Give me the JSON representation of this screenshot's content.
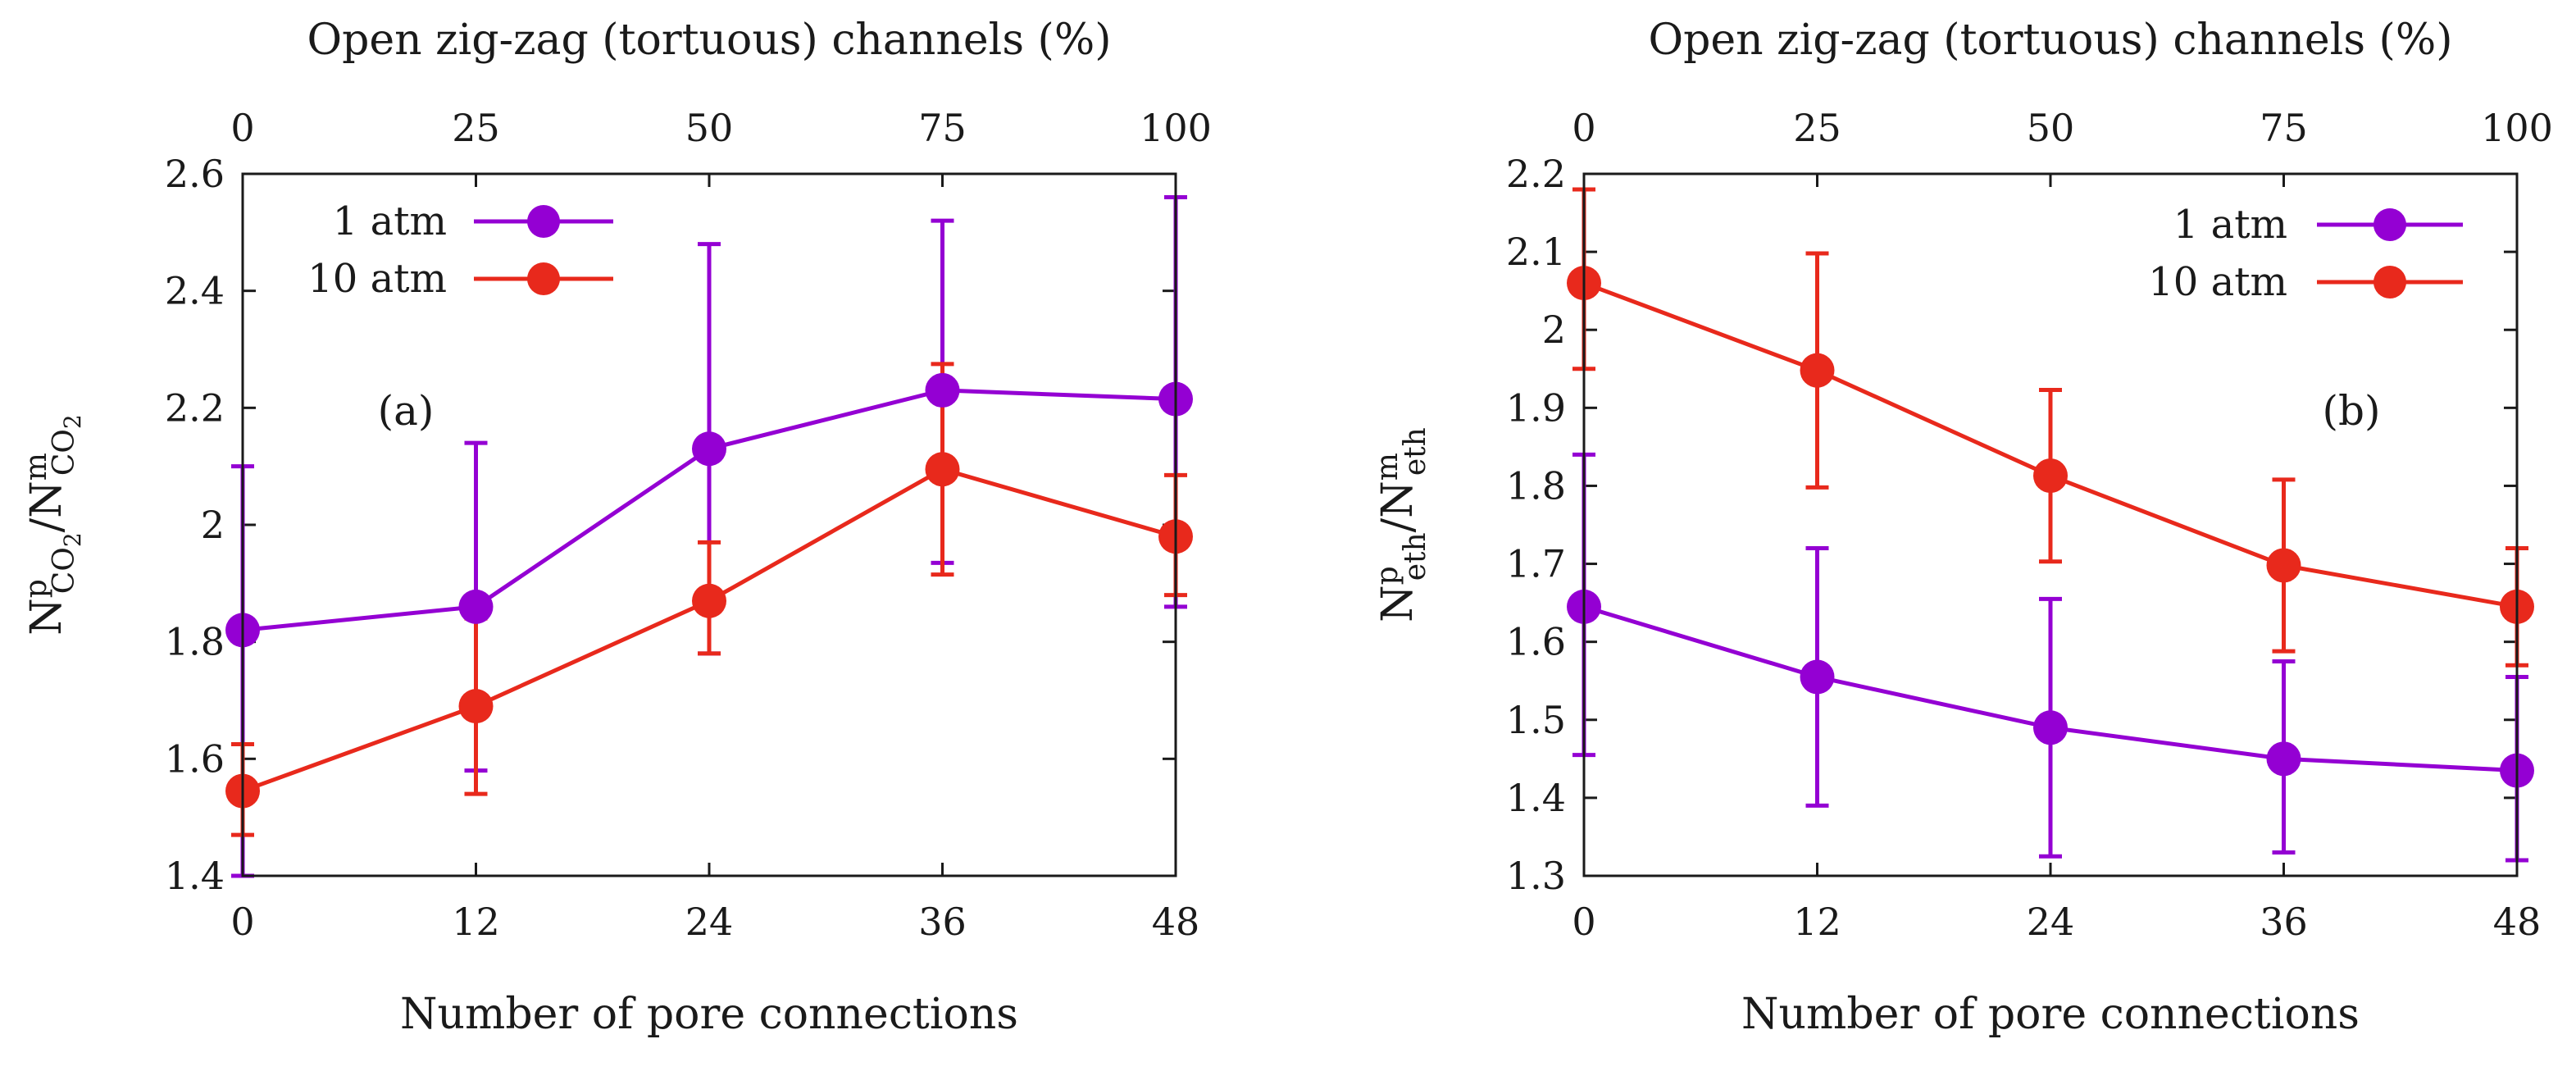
{
  "chart_data": [
    {
      "type": "line",
      "panel_label": "(a)",
      "xlabel": "Number of pore connections",
      "x2label": "Open zig-zag (tortuous) channels (%)",
      "ylabel": {
        "base": "N",
        "sup": "p",
        "sub": "CO",
        "sub2": "2",
        "sep": "/",
        "base2": "N",
        "sup2": "m",
        "sub3": "CO",
        "sub4": "2"
      },
      "x_ticks": [
        "0",
        "12",
        "24",
        "36",
        "48"
      ],
      "x2_ticks": [
        "0",
        "25",
        "50",
        "75",
        "100"
      ],
      "y_ticks": [
        "1.4",
        "1.6",
        "1.8",
        "2",
        "2.2",
        "2.4",
        "2.6"
      ],
      "xlim": [
        0,
        48
      ],
      "ylim": [
        1.4,
        2.6
      ],
      "legend_position": "top-left",
      "series": [
        {
          "name": "1 atm",
          "color": "#9400d3",
          "x": [
            0,
            12,
            24,
            36,
            48
          ],
          "values": [
            1.82,
            1.86,
            2.13,
            2.23,
            2.215
          ],
          "err_low": [
            0.42,
            0.28,
            0.35,
            0.295,
            0.355
          ],
          "err_high": [
            0.28,
            0.28,
            0.35,
            0.29,
            0.345
          ]
        },
        {
          "name": "10 atm",
          "color": "#e8291c",
          "x": [
            0,
            12,
            24,
            36,
            48
          ],
          "values": [
            1.545,
            1.69,
            1.87,
            2.095,
            1.98
          ],
          "err_low": [
            0.075,
            0.15,
            0.09,
            0.18,
            0.1
          ],
          "err_high": [
            0.08,
            0.15,
            0.1,
            0.18,
            0.105
          ]
        }
      ]
    },
    {
      "type": "line",
      "panel_label": "(b)",
      "xlabel": "Number of pore connections",
      "x2label": "Open zig-zag (tortuous) channels (%)",
      "ylabel": {
        "base": "N",
        "sup": "p",
        "sub": "eth",
        "sep": "/",
        "base2": "N",
        "sup2": "m",
        "sub3": "eth"
      },
      "x_ticks": [
        "0",
        "12",
        "24",
        "36",
        "48"
      ],
      "x2_ticks": [
        "0",
        "25",
        "50",
        "75",
        "100"
      ],
      "y_ticks": [
        "1.3",
        "1.4",
        "1.5",
        "1.6",
        "1.7",
        "1.8",
        "1.9",
        "2",
        "2.1",
        "2.2"
      ],
      "xlim": [
        0,
        48
      ],
      "ylim": [
        1.3,
        2.2
      ],
      "legend_position": "top-right",
      "series": [
        {
          "name": "1 atm",
          "color": "#9400d3",
          "x": [
            0,
            12,
            24,
            36,
            48
          ],
          "values": [
            1.645,
            1.555,
            1.49,
            1.45,
            1.435
          ],
          "err_low": [
            0.19,
            0.165,
            0.165,
            0.12,
            0.115
          ],
          "err_high": [
            0.195,
            0.165,
            0.165,
            0.125,
            0.12
          ]
        },
        {
          "name": "10 atm",
          "color": "#e8291c",
          "x": [
            0,
            12,
            24,
            36,
            48
          ],
          "values": [
            2.06,
            1.948,
            1.813,
            1.698,
            1.645
          ],
          "err_low": [
            0.11,
            0.15,
            0.11,
            0.11,
            0.075
          ],
          "err_high": [
            0.12,
            0.15,
            0.11,
            0.11,
            0.075
          ]
        }
      ]
    }
  ]
}
